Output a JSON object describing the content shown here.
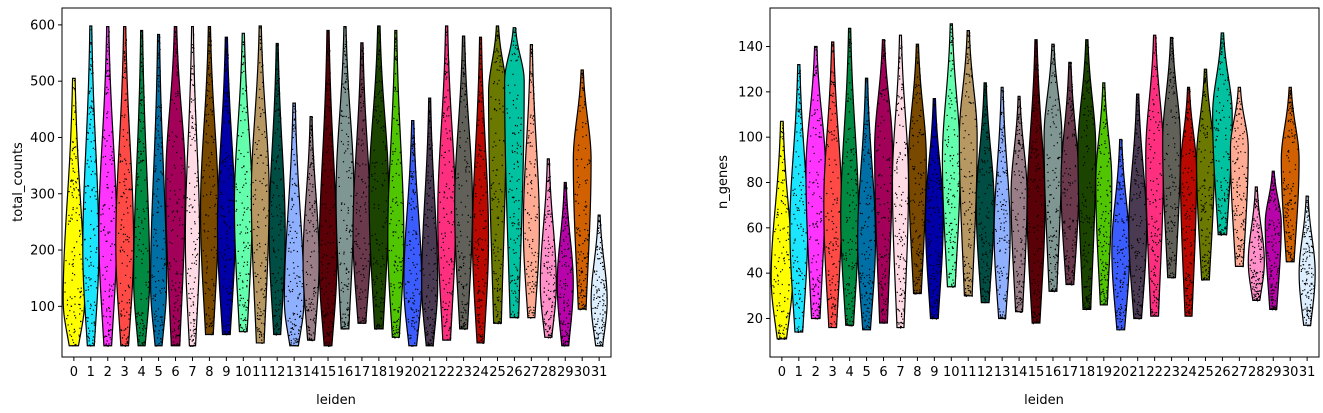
{
  "chart_data": [
    {
      "type": "violin",
      "xlabel": "leiden",
      "ylabel": "total_counts",
      "categories": [
        "0",
        "1",
        "2",
        "3",
        "4",
        "5",
        "6",
        "7",
        "8",
        "9",
        "10",
        "11",
        "12",
        "13",
        "14",
        "15",
        "16",
        "17",
        "18",
        "19",
        "20",
        "21",
        "22",
        "23",
        "24",
        "25",
        "26",
        "27",
        "28",
        "29",
        "30",
        "31"
      ],
      "ylim": [
        10,
        630
      ],
      "yticks": [
        100,
        200,
        300,
        400,
        500,
        600
      ],
      "series": [
        {
          "category": "0",
          "min": 30,
          "max": 505,
          "median": 110,
          "mode": 110,
          "width": 0.6
        },
        {
          "category": "1",
          "min": 30,
          "max": 598,
          "median": 200,
          "mode": 200,
          "width": 0.45
        },
        {
          "category": "2",
          "min": 30,
          "max": 597,
          "median": 220,
          "mode": 230,
          "width": 0.5
        },
        {
          "category": "3",
          "min": 30,
          "max": 597,
          "median": 200,
          "mode": 210,
          "width": 0.5
        },
        {
          "category": "4",
          "min": 30,
          "max": 590,
          "median": 160,
          "mode": 150,
          "width": 0.45
        },
        {
          "category": "5",
          "min": 30,
          "max": 583,
          "median": 150,
          "mode": 140,
          "width": 0.45
        },
        {
          "category": "6",
          "min": 30,
          "max": 597,
          "median": 330,
          "mode": 320,
          "width": 0.55
        },
        {
          "category": "7",
          "min": 30,
          "max": 597,
          "median": 230,
          "mode": 220,
          "width": 0.4
        },
        {
          "category": "8",
          "min": 50,
          "max": 597,
          "median": 270,
          "mode": 270,
          "width": 0.5
        },
        {
          "category": "9",
          "min": 50,
          "max": 578,
          "median": 250,
          "mode": 240,
          "width": 0.5
        },
        {
          "category": "10",
          "min": 55,
          "max": 585,
          "median": 280,
          "mode": 280,
          "width": 0.5
        },
        {
          "category": "11",
          "min": 35,
          "max": 598,
          "median": 300,
          "mode": 300,
          "width": 0.5
        },
        {
          "category": "12",
          "min": 50,
          "max": 567,
          "median": 230,
          "mode": 230,
          "width": 0.45
        },
        {
          "category": "13",
          "min": 30,
          "max": 461,
          "median": 110,
          "mode": 110,
          "width": 0.55
        },
        {
          "category": "14",
          "min": 40,
          "max": 437,
          "median": 180,
          "mode": 180,
          "width": 0.45
        },
        {
          "category": "15",
          "min": 30,
          "max": 590,
          "median": 200,
          "mode": 180,
          "width": 0.5
        },
        {
          "category": "16",
          "min": 60,
          "max": 597,
          "median": 300,
          "mode": 300,
          "width": 0.5
        },
        {
          "category": "17",
          "min": 70,
          "max": 568,
          "median": 240,
          "mode": 230,
          "width": 0.5
        },
        {
          "category": "18",
          "min": 60,
          "max": 598,
          "median": 290,
          "mode": 300,
          "width": 0.55
        },
        {
          "category": "19",
          "min": 45,
          "max": 590,
          "median": 230,
          "mode": 220,
          "width": 0.45
        },
        {
          "category": "20",
          "min": 30,
          "max": 430,
          "median": 150,
          "mode": 140,
          "width": 0.5
        },
        {
          "category": "21",
          "min": 30,
          "max": 470,
          "median": 150,
          "mode": 140,
          "width": 0.45
        },
        {
          "category": "22",
          "min": 40,
          "max": 598,
          "median": 270,
          "mode": 260,
          "width": 0.5
        },
        {
          "category": "23",
          "min": 60,
          "max": 580,
          "median": 280,
          "mode": 280,
          "width": 0.5
        },
        {
          "category": "24",
          "min": 35,
          "max": 578,
          "median": 220,
          "mode": 220,
          "width": 0.45
        },
        {
          "category": "25",
          "min": 70,
          "max": 598,
          "median": 420,
          "mode": 480,
          "width": 0.5
        },
        {
          "category": "26",
          "min": 80,
          "max": 595,
          "median": 380,
          "mode": 500,
          "width": 0.55
        },
        {
          "category": "27",
          "min": 80,
          "max": 565,
          "median": 250,
          "mode": 240,
          "width": 0.45
        },
        {
          "category": "28",
          "min": 45,
          "max": 362,
          "median": 160,
          "mode": 140,
          "width": 0.45
        },
        {
          "category": "29",
          "min": 30,
          "max": 320,
          "median": 140,
          "mode": 140,
          "width": 0.45
        },
        {
          "category": "30",
          "min": 95,
          "max": 520,
          "median": 330,
          "mode": 360,
          "width": 0.5
        },
        {
          "category": "31",
          "min": 30,
          "max": 262,
          "median": 120,
          "mode": 110,
          "width": 0.45
        }
      ]
    },
    {
      "type": "violin",
      "xlabel": "leiden",
      "ylabel": "n_genes",
      "categories": [
        "0",
        "1",
        "2",
        "3",
        "4",
        "5",
        "6",
        "7",
        "8",
        "9",
        "10",
        "11",
        "12",
        "13",
        "14",
        "15",
        "16",
        "17",
        "18",
        "19",
        "20",
        "21",
        "22",
        "23",
        "24",
        "25",
        "26",
        "27",
        "28",
        "29",
        "30",
        "31"
      ],
      "ylim": [
        3,
        157
      ],
      "yticks": [
        20,
        40,
        60,
        80,
        100,
        120,
        140
      ],
      "series": [
        {
          "category": "0",
          "min": 11,
          "max": 107,
          "median": 40,
          "mode": 38,
          "width": 0.6
        },
        {
          "category": "1",
          "min": 14,
          "max": 132,
          "median": 60,
          "mode": 60,
          "width": 0.5
        },
        {
          "category": "2",
          "min": 20,
          "max": 140,
          "median": 80,
          "mode": 85,
          "width": 0.55
        },
        {
          "category": "3",
          "min": 16,
          "max": 142,
          "median": 68,
          "mode": 70,
          "width": 0.5
        },
        {
          "category": "4",
          "min": 17,
          "max": 148,
          "median": 64,
          "mode": 65,
          "width": 0.5
        },
        {
          "category": "5",
          "min": 15,
          "max": 126,
          "median": 58,
          "mode": 55,
          "width": 0.5
        },
        {
          "category": "6",
          "min": 18,
          "max": 143,
          "median": 90,
          "mode": 95,
          "width": 0.5
        },
        {
          "category": "7",
          "min": 16,
          "max": 145,
          "median": 82,
          "mode": 80,
          "width": 0.45
        },
        {
          "category": "8",
          "min": 31,
          "max": 141,
          "median": 88,
          "mode": 90,
          "width": 0.5
        },
        {
          "category": "9",
          "min": 20,
          "max": 117,
          "median": 68,
          "mode": 65,
          "width": 0.5
        },
        {
          "category": "10",
          "min": 34,
          "max": 150,
          "median": 88,
          "mode": 90,
          "width": 0.5
        },
        {
          "category": "11",
          "min": 30,
          "max": 147,
          "median": 95,
          "mode": 100,
          "width": 0.5
        },
        {
          "category": "12",
          "min": 27,
          "max": 124,
          "median": 70,
          "mode": 70,
          "width": 0.5
        },
        {
          "category": "13",
          "min": 20,
          "max": 122,
          "median": 60,
          "mode": 58,
          "width": 0.45
        },
        {
          "category": "14",
          "min": 23,
          "max": 118,
          "median": 75,
          "mode": 75,
          "width": 0.45
        },
        {
          "category": "15",
          "min": 18,
          "max": 143,
          "median": 68,
          "mode": 70,
          "width": 0.5
        },
        {
          "category": "16",
          "min": 32,
          "max": 141,
          "median": 98,
          "mode": 100,
          "width": 0.5
        },
        {
          "category": "17",
          "min": 35,
          "max": 133,
          "median": 80,
          "mode": 80,
          "width": 0.5
        },
        {
          "category": "18",
          "min": 24,
          "max": 143,
          "median": 92,
          "mode": 95,
          "width": 0.5
        },
        {
          "category": "19",
          "min": 26,
          "max": 124,
          "median": 78,
          "mode": 80,
          "width": 0.45
        },
        {
          "category": "20",
          "min": 15,
          "max": 99,
          "median": 52,
          "mode": 50,
          "width": 0.5
        },
        {
          "category": "21",
          "min": 20,
          "max": 119,
          "median": 62,
          "mode": 60,
          "width": 0.5
        },
        {
          "category": "22",
          "min": 21,
          "max": 145,
          "median": 88,
          "mode": 92,
          "width": 0.5
        },
        {
          "category": "23",
          "min": 38,
          "max": 144,
          "median": 96,
          "mode": 98,
          "width": 0.5
        },
        {
          "category": "24",
          "min": 21,
          "max": 122,
          "median": 82,
          "mode": 85,
          "width": 0.45
        },
        {
          "category": "25",
          "min": 37,
          "max": 130,
          "median": 90,
          "mode": 90,
          "width": 0.5
        },
        {
          "category": "26",
          "min": 57,
          "max": 146,
          "median": 108,
          "mode": 110,
          "width": 0.55
        },
        {
          "category": "27",
          "min": 43,
          "max": 122,
          "median": 90,
          "mode": 95,
          "width": 0.5
        },
        {
          "category": "28",
          "min": 28,
          "max": 78,
          "median": 50,
          "mode": 45,
          "width": 0.45
        },
        {
          "category": "29",
          "min": 24,
          "max": 85,
          "median": 60,
          "mode": 62,
          "width": 0.45
        },
        {
          "category": "30",
          "min": 45,
          "max": 122,
          "median": 90,
          "mode": 90,
          "width": 0.5
        },
        {
          "category": "31",
          "min": 17,
          "max": 74,
          "median": 45,
          "mode": 40,
          "width": 0.45
        }
      ]
    }
  ],
  "colors": [
    "#FFFF00",
    "#1CE6FF",
    "#FF34FF",
    "#FF4A46",
    "#008941",
    "#006FA6",
    "#A30059",
    "#FFDBE5",
    "#7A4900",
    "#0000A6",
    "#63FFAC",
    "#B79762",
    "#004D43",
    "#8FB0FF",
    "#997D87",
    "#5A0007",
    "#809693",
    "#6A3A4C",
    "#1B4400",
    "#4FC601",
    "#3B5DFF",
    "#4A3B53",
    "#FF2F80",
    "#61615A",
    "#BA0900",
    "#6B7900",
    "#00C2A0",
    "#FFAA92",
    "#FF90C9",
    "#B903AA",
    "#D16100",
    "#DDEFFF"
  ]
}
